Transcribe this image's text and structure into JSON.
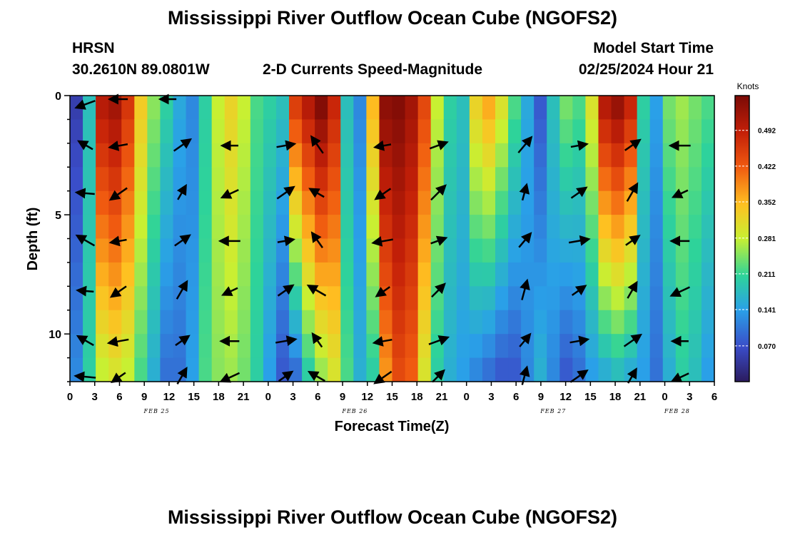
{
  "title": "Mississippi River Outflow Ocean Cube (NGOFS2)",
  "footer_title": "Mississippi River Outflow Ocean Cube (NGOFS2)",
  "station": {
    "name": "HRSN",
    "coords": "30.2610N  89.0801W"
  },
  "model": {
    "label": "Model Start Time",
    "time": "02/25/2024 Hour 21"
  },
  "plot_subtitle": "2-D Currents Speed-Magnitude",
  "colors": {
    "arrow": "#000000"
  },
  "chart_data": {
    "type": "heatmap",
    "title": "2-D Currents Speed-Magnitude",
    "xlabel": "Forecast Time(Z)",
    "ylabel": "Depth (ft)",
    "x_tick_labels": [
      "0",
      "3",
      "6",
      "9",
      "12",
      "15",
      "18",
      "21",
      "0",
      "3",
      "6",
      "9",
      "12",
      "15",
      "18",
      "21",
      "0",
      "3",
      "6",
      "9",
      "12",
      "15",
      "18",
      "21",
      "0",
      "3",
      "6"
    ],
    "day_labels": [
      "FEB 25",
      "FEB 26",
      "FEB 27",
      "FEB 28"
    ],
    "y_tick_labels": [
      "0",
      "5",
      "10"
    ],
    "xlim_hours": [
      0,
      78
    ],
    "ylim_ft": [
      0,
      12
    ],
    "colorbar": {
      "title": "Knots",
      "ticks": [
        "0.492",
        "0.422",
        "0.352",
        "0.281",
        "0.211",
        "0.141",
        "0.070"
      ],
      "range": [
        0.0,
        0.56
      ]
    },
    "surface_speed_knots": [
      0.05,
      0.18,
      0.5,
      0.52,
      0.46,
      0.33,
      0.25,
      0.2,
      0.15,
      0.12,
      0.2,
      0.28,
      0.32,
      0.28,
      0.22,
      0.2,
      0.18,
      0.45,
      0.5,
      0.55,
      0.48,
      0.18,
      0.12,
      0.35,
      0.54,
      0.55,
      0.52,
      0.44,
      0.28,
      0.2,
      0.18,
      0.32,
      0.36,
      0.3,
      0.22,
      0.15,
      0.08,
      0.18,
      0.24,
      0.22,
      0.3,
      0.5,
      0.53,
      0.48,
      0.2,
      0.14,
      0.24,
      0.26,
      0.24,
      0.22
    ],
    "bottom_speed_knots": [
      0.12,
      0.2,
      0.28,
      0.3,
      0.28,
      0.22,
      0.16,
      0.1,
      0.1,
      0.14,
      0.22,
      0.25,
      0.26,
      0.24,
      0.2,
      0.14,
      0.08,
      0.1,
      0.2,
      0.26,
      0.3,
      0.22,
      0.16,
      0.2,
      0.38,
      0.44,
      0.42,
      0.3,
      0.2,
      0.16,
      0.14,
      0.12,
      0.1,
      0.08,
      0.08,
      0.12,
      0.16,
      0.12,
      0.08,
      0.1,
      0.14,
      0.16,
      0.18,
      0.16,
      0.14,
      0.1,
      0.16,
      0.2,
      0.18,
      0.14
    ],
    "vectors_first_row": [
      {
        "hour": 2,
        "depth_ft": 0.2,
        "dir_deg": 200,
        "len": 1.0
      },
      {
        "hour": 6,
        "depth_ft": 0.0,
        "dir_deg": 180,
        "len": 0.8
      },
      {
        "hour": 12,
        "depth_ft": 0.0,
        "dir_deg": 180,
        "len": 0.6
      }
    ]
  }
}
